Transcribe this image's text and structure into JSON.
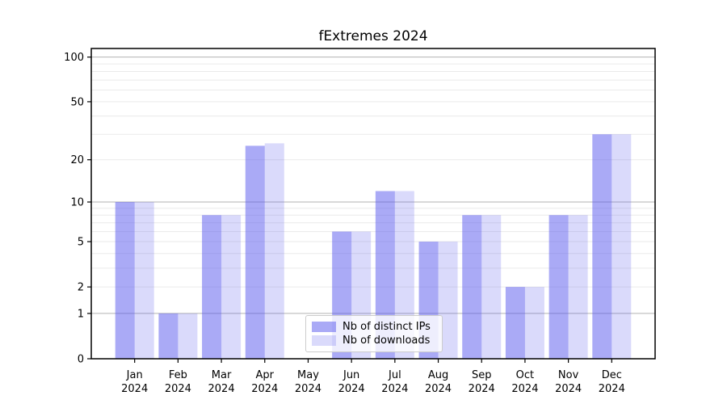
{
  "chart_data": {
    "type": "bar",
    "title": "fExtremes 2024",
    "categories": [
      "Jan",
      "Feb",
      "Mar",
      "Apr",
      "May",
      "Jun",
      "Jul",
      "Aug",
      "Sep",
      "Oct",
      "Nov",
      "Dec"
    ],
    "year_label": "2024",
    "series": [
      {
        "name": "Nb of distinct IPs",
        "color": "rgba(85,85,238,0.5)",
        "values": [
          10,
          1,
          8,
          25,
          0,
          6,
          12,
          5,
          8,
          2,
          8,
          30
        ]
      },
      {
        "name": "Nb of downloads",
        "color": "rgba(85,85,238,0.22)",
        "values": [
          10,
          1,
          8,
          26,
          0,
          6,
          12,
          5,
          8,
          2,
          8,
          30
        ]
      }
    ],
    "xlabel": "",
    "ylabel": "",
    "yscale": "log1p",
    "ylim": [
      0,
      114
    ],
    "yticks": [
      0,
      1,
      2,
      5,
      10,
      20,
      50,
      100
    ],
    "major_gridlines": [
      1,
      10,
      100
    ],
    "minor_gridlines": [
      2,
      3,
      4,
      5,
      6,
      7,
      8,
      9,
      20,
      30,
      40,
      50,
      60,
      70,
      80,
      90
    ],
    "grid": true,
    "legend_position": "lower center",
    "colors": {
      "axis": "#000000",
      "major_grid": "#b3b3b3",
      "minor_grid": "#eaeaea",
      "legend_border": "#cccccc"
    }
  }
}
